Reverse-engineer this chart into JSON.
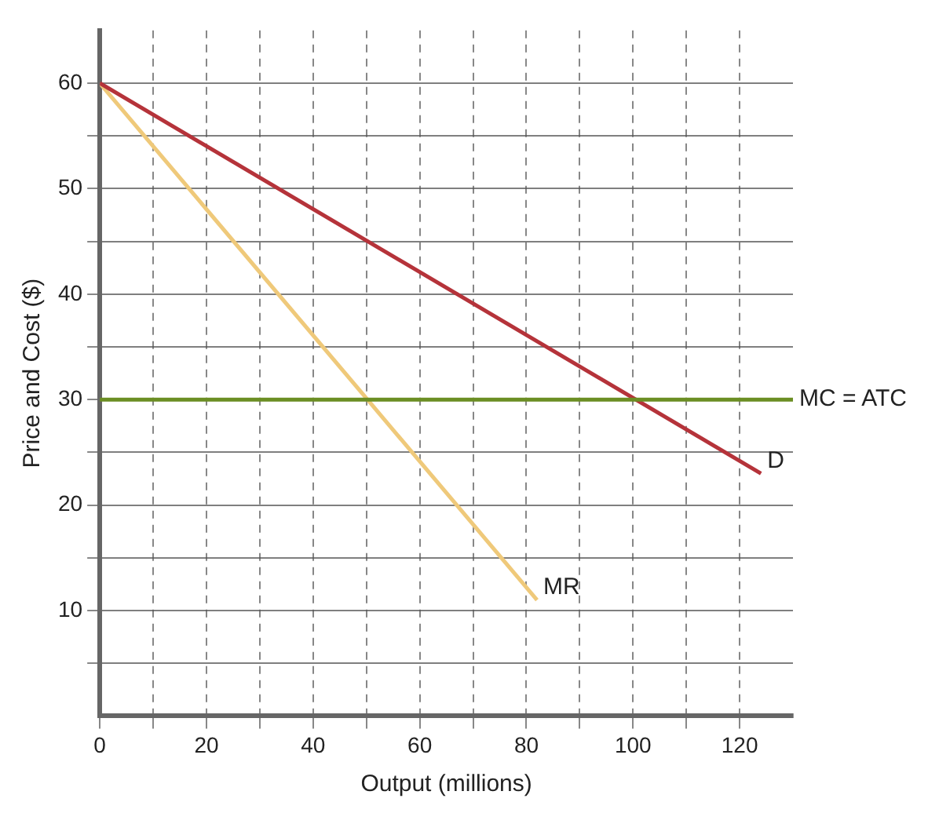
{
  "chart_data": {
    "type": "line",
    "xlabel": "Output (millions)",
    "ylabel": "Price and Cost ($)",
    "xlim": [
      0,
      130
    ],
    "ylim": [
      0,
      65
    ],
    "xticks": [
      0,
      {
        "value": 10,
        "label": null
      },
      20,
      {
        "value": 30,
        "label": null
      },
      40,
      {
        "value": 50,
        "label": null
      },
      60,
      {
        "value": 70,
        "label": null
      },
      80,
      {
        "value": 90,
        "label": null
      },
      100,
      {
        "value": 110,
        "label": null
      },
      120
    ],
    "yticks": [
      {
        "value": 5,
        "label": null
      },
      10,
      {
        "value": 15,
        "label": null
      },
      20,
      {
        "value": 25,
        "label": null
      },
      30,
      {
        "value": 35,
        "label": null
      },
      40,
      {
        "value": 45,
        "label": null
      },
      50,
      {
        "value": 55,
        "label": null
      },
      60
    ],
    "series": [
      {
        "name": "D",
        "color": "#b5333a",
        "x": [
          0,
          124
        ],
        "values": [
          60,
          23
        ]
      },
      {
        "name": "MR",
        "color": "#efc97a",
        "x": [
          0,
          82
        ],
        "values": [
          60,
          11
        ]
      }
    ],
    "ref_lines": [
      {
        "axis": "y",
        "value": 30,
        "label": "MC = ATC",
        "color": "#6b8e23"
      }
    ],
    "grid": true,
    "legend": false,
    "marker": "none",
    "line_style": "solid"
  }
}
